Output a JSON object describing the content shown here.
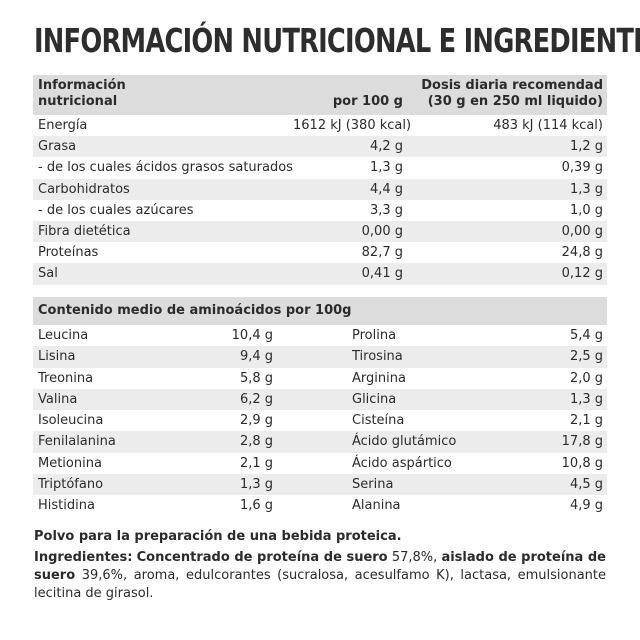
{
  "title": "INFORMACIÓN NUTRICIONAL E INGREDIENTES",
  "nutrition": {
    "header": {
      "col1_line1": "Información",
      "col1_line2": "nutricional",
      "col2": "por 100 g",
      "col3_line1": "Dosis diaria recomendad",
      "col3_line2": "(30 g en 250 ml liquido)"
    },
    "rows": [
      {
        "name": "Energía",
        "per100": "1612 kJ (380 kcal)",
        "dose": "483 kJ (114 kcal)"
      },
      {
        "name": "Grasa",
        "per100": "4,2 g",
        "dose": "1,2 g"
      },
      {
        "name": "- de los cuales ácidos grasos saturados",
        "per100": "1,3 g",
        "dose": "0,39 g"
      },
      {
        "name": "Carbohidratos",
        "per100": "4,4 g",
        "dose": "1,3 g"
      },
      {
        "name": "- de los cuales azúcares",
        "per100": "3,3 g",
        "dose": "1,0 g"
      },
      {
        "name": "Fibra dietética",
        "per100": "0,00 g",
        "dose": "0,00 g"
      },
      {
        "name": "Proteínas",
        "per100": "82,7 g",
        "dose": "24,8 g"
      },
      {
        "name": "Sal",
        "per100": "0,41 g",
        "dose": "0,12 g"
      }
    ]
  },
  "amino": {
    "header": "Contenido medio de aminoácidos por 100g",
    "rows": [
      {
        "n1": "Leucina",
        "v1": "10,4 g",
        "n2": "Prolina",
        "v2": "5,4 g"
      },
      {
        "n1": "Lisina",
        "v1": "9,4 g",
        "n2": "Tirosina",
        "v2": "2,5 g"
      },
      {
        "n1": "Treonina",
        "v1": "5,8 g",
        "n2": "Arginina",
        "v2": "2,0 g"
      },
      {
        "n1": "Valina",
        "v1": "6,2 g",
        "n2": "Glicina",
        "v2": "1,3 g"
      },
      {
        "n1": "Isoleucina",
        "v1": "2,9 g",
        "n2": "Cisteína",
        "v2": "2,1 g"
      },
      {
        "n1": "Fenilalanina",
        "v1": "2,8 g",
        "n2": "Ácido glutámico",
        "v2": "17,8 g"
      },
      {
        "n1": "Metionina",
        "v1": "2,1 g",
        "n2": "Ácido aspártico",
        "v2": "10,8 g"
      },
      {
        "n1": "Triptófano",
        "v1": "1,3 g",
        "n2": "Serina",
        "v2": "4,5 g"
      },
      {
        "n1": "Histidina",
        "v1": "1,6 g",
        "n2": "Alanina",
        "v2": "4,9 g"
      }
    ]
  },
  "footer": {
    "preparation": "Polvo para la preparación de una bebida proteica.",
    "ingredients_label": "Ingredientes:",
    "ing_part1_bold": "Concentrado de proteína de suero",
    "ing_part1_pct": "57,8%,",
    "ing_part2_bold": "aislado de proteína de suero",
    "ing_rest": "39,6%, aroma, edulcorantes (sucralosa, acesulfamo K), lactasa, emulsionante lecitina de girasol."
  }
}
